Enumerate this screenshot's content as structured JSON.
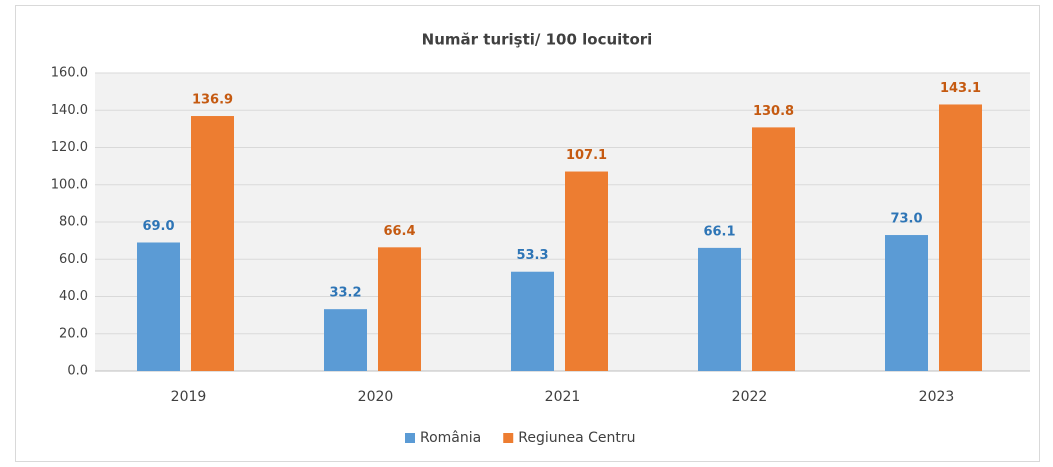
{
  "chart_data": {
    "type": "bar",
    "title": "Număr turişti/ 100 locuitori",
    "categories": [
      "2019",
      "2020",
      "2021",
      "2022",
      "2023"
    ],
    "series": [
      {
        "name": "România",
        "color": "#5b9bd5",
        "values": [
          69.0,
          33.2,
          53.3,
          66.1,
          73.0
        ],
        "value_labels": [
          "69.0",
          "33.2",
          "53.3",
          "66.1",
          "73.0"
        ]
      },
      {
        "name": "Regiunea Centru",
        "color": "#ed7d31",
        "values": [
          136.9,
          66.4,
          107.1,
          130.8,
          143.1
        ],
        "value_labels": [
          "136.9",
          "66.4",
          "107.1",
          "130.8",
          "143.1"
        ]
      }
    ],
    "ylim": [
      0,
      160
    ],
    "yticks": [
      {
        "value": 0,
        "label": "0.0"
      },
      {
        "value": 20,
        "label": "20.0"
      },
      {
        "value": 40,
        "label": "40.0"
      },
      {
        "value": 60,
        "label": "60.0"
      },
      {
        "value": 80,
        "label": "80.0"
      },
      {
        "value": 100,
        "label": "100.0"
      },
      {
        "value": 120,
        "label": "120.0"
      },
      {
        "value": 140,
        "label": "140.0"
      },
      {
        "value": 160,
        "label": "160.0"
      }
    ],
    "grid": true,
    "legend": "bottom"
  }
}
